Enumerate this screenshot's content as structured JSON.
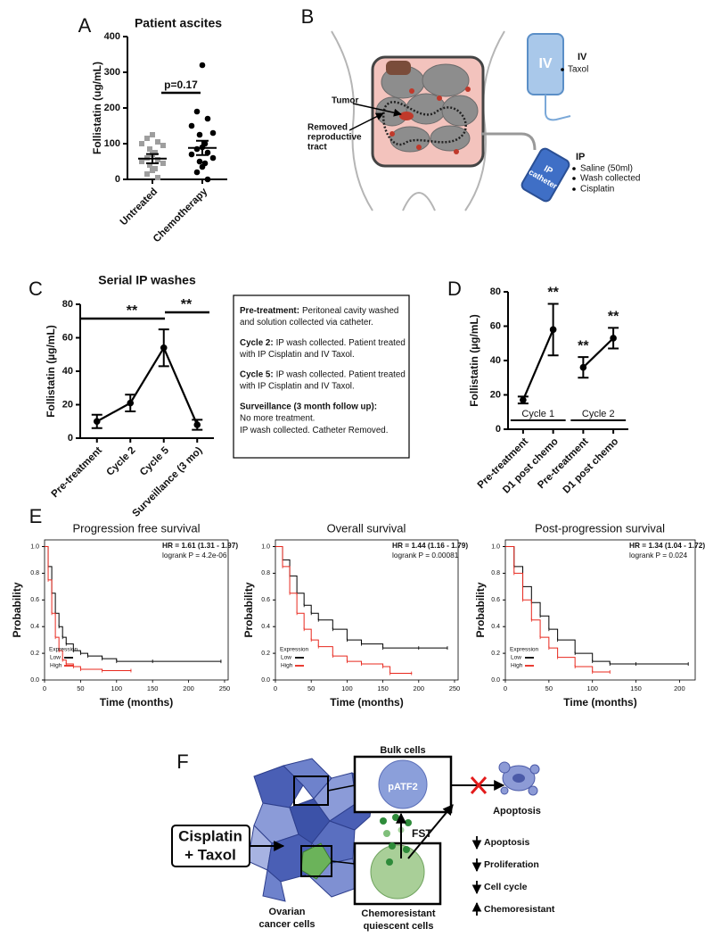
{
  "panel_labels": [
    "A",
    "B",
    "C",
    "D",
    "E",
    "F"
  ],
  "chart_data": [
    {
      "type": "strip",
      "title": "Patient ascites",
      "ylabel": "Follistatin (ug/mL)",
      "categories": [
        "Untreated",
        "Chemotherapy"
      ],
      "values": [
        [
          125,
          115,
          105,
          100,
          95,
          85,
          75,
          70,
          60,
          55,
          50,
          45,
          40,
          30,
          25,
          15,
          5
        ],
        [
          320,
          190,
          170,
          150,
          130,
          125,
          100,
          90,
          85,
          75,
          70,
          60,
          50,
          45,
          35,
          20,
          0
        ]
      ],
      "means": [
        58,
        88
      ],
      "errors": [
        13,
        20
      ],
      "colors": [
        "#9e9e9e",
        "#000000"
      ],
      "markers": [
        "square",
        "circle"
      ],
      "ylim": [
        0,
        400
      ],
      "yticks": [
        0,
        100,
        200,
        300,
        400
      ],
      "annotation": "p=0.17"
    },
    {
      "type": "line",
      "title": "Serial IP washes",
      "ylabel": "Follistatin (µg/mL)",
      "categories": [
        "Pre-treatment",
        "Cycle 2",
        "Cycle 5",
        "Surveillance (3 mo)"
      ],
      "values": [
        10,
        21,
        54,
        8
      ],
      "errors": [
        4,
        5,
        11,
        3
      ],
      "color": "#000000",
      "ylim": [
        0,
        80
      ],
      "yticks": [
        0,
        20,
        40,
        60,
        80
      ],
      "annotations": [
        "**",
        "**"
      ]
    },
    {
      "type": "line",
      "ylabel": "Follistatin (µg/mL)",
      "categories": [
        "Pre-treatment",
        "D1 post chemo",
        "Pre-treatment",
        "D1 post chemo"
      ],
      "series": [
        {
          "name": "Cycle 1",
          "color": "#000000",
          "values": [
            17,
            58,
            null,
            null
          ],
          "errors": [
            2,
            15,
            null,
            null
          ]
        },
        {
          "name": "Cycle 2",
          "color": "#000000",
          "values": [
            null,
            null,
            36,
            53
          ],
          "errors": [
            null,
            null,
            6,
            6
          ]
        }
      ],
      "ylim": [
        0,
        80
      ],
      "yticks": [
        0,
        20,
        40,
        60,
        80
      ],
      "annotations": [
        "**",
        "**",
        "**"
      ]
    },
    {
      "type": "survival",
      "title": "Progression free survival",
      "hr_text": "HR = 1.61 (1.31 - 1.97)",
      "logrank_text": "logrank P = 4.2e-06",
      "xlabel": "Time (months)",
      "ylabel": "Probability",
      "legend_title": "Expression",
      "series": [
        {
          "name": "Low",
          "color": "#000000",
          "x": [
            0,
            5,
            10,
            15,
            20,
            25,
            30,
            40,
            50,
            60,
            80,
            100,
            150,
            245
          ],
          "values": [
            1,
            0.85,
            0.65,
            0.5,
            0.4,
            0.32,
            0.27,
            0.22,
            0.2,
            0.18,
            0.16,
            0.14,
            0.14,
            0.14
          ]
        },
        {
          "name": "High",
          "color": "#e8281e",
          "x": [
            0,
            5,
            10,
            15,
            20,
            25,
            30,
            40,
            50,
            80,
            120
          ],
          "values": [
            1,
            0.75,
            0.5,
            0.32,
            0.22,
            0.15,
            0.12,
            0.1,
            0.08,
            0.07,
            0.07
          ]
        }
      ],
      "xlim": [
        0,
        255
      ],
      "xticks": [
        0,
        50,
        100,
        150,
        200,
        250
      ],
      "ylim": [
        0,
        1.05
      ],
      "yticks": [
        {
          "value": 0,
          "label": "0.0"
        },
        0.2,
        0.4,
        0.6,
        0.8,
        {
          "value": 1,
          "label": "1.0"
        }
      ]
    },
    {
      "type": "survival",
      "title": "Overall survival",
      "hr_text": "HR = 1.44 (1.16 - 1.79)",
      "logrank_text": "logrank P = 0.00081",
      "xlabel": "Time (months)",
      "ylabel": "Probability",
      "legend_title": "Expression",
      "series": [
        {
          "name": "Low",
          "color": "#000000",
          "x": [
            0,
            10,
            20,
            30,
            40,
            50,
            60,
            80,
            100,
            120,
            150,
            200,
            240
          ],
          "values": [
            1,
            0.9,
            0.78,
            0.65,
            0.56,
            0.5,
            0.45,
            0.38,
            0.3,
            0.27,
            0.24,
            0.24,
            0.24
          ]
        },
        {
          "name": "High",
          "color": "#e8281e",
          "x": [
            0,
            10,
            20,
            30,
            40,
            50,
            60,
            80,
            100,
            120,
            150,
            160,
            190
          ],
          "values": [
            1,
            0.85,
            0.65,
            0.5,
            0.38,
            0.3,
            0.25,
            0.18,
            0.14,
            0.12,
            0.1,
            0.05,
            0.05
          ]
        }
      ],
      "xlim": [
        0,
        255
      ],
      "xticks": [
        0,
        50,
        100,
        150,
        200,
        250
      ],
      "ylim": [
        0,
        1.05
      ],
      "yticks": [
        {
          "value": 0,
          "label": "0.0"
        },
        0.2,
        0.4,
        0.6,
        0.8,
        {
          "value": 1,
          "label": "1.0"
        }
      ]
    },
    {
      "type": "survival",
      "title": "Post-progression survival",
      "hr_text": "HR = 1.34 (1.04 - 1.72)",
      "logrank_text": "logrank P = 0.024",
      "xlabel": "Time (months)",
      "ylabel": "Probability",
      "legend_title": "Expression",
      "series": [
        {
          "name": "Low",
          "color": "#000000",
          "x": [
            0,
            10,
            20,
            30,
            40,
            50,
            60,
            80,
            100,
            120,
            150,
            210
          ],
          "values": [
            1,
            0.85,
            0.7,
            0.58,
            0.48,
            0.38,
            0.3,
            0.2,
            0.14,
            0.12,
            0.12,
            0.12
          ]
        },
        {
          "name": "High",
          "color": "#e8281e",
          "x": [
            0,
            10,
            20,
            30,
            40,
            50,
            60,
            80,
            100,
            120
          ],
          "values": [
            1,
            0.8,
            0.6,
            0.45,
            0.32,
            0.24,
            0.17,
            0.1,
            0.06,
            0.06
          ]
        }
      ],
      "xlim": [
        0,
        218
      ],
      "xticks": [
        0,
        50,
        100,
        150,
        200
      ],
      "ylim": [
        0,
        1.05
      ],
      "yticks": [
        {
          "value": 0,
          "label": "0.0"
        },
        0.2,
        0.4,
        0.6,
        0.8,
        {
          "value": 1,
          "label": "1.0"
        }
      ]
    }
  ],
  "panel_c_notes": [
    {
      "heading": "Pre-treatment:",
      "inline": true,
      "lines": [
        "Peritoneal cavity washed",
        "and solution collected via catheter."
      ]
    },
    {
      "heading": "Cycle 2:",
      "inline": true,
      "lines": [
        "IP wash collected. Patient treated",
        "with IP Cisplatin and IV Taxol."
      ]
    },
    {
      "heading": "Cycle 5:",
      "inline": true,
      "lines": [
        "IP wash collected. Patient treated",
        "with IP Cisplatin and IV Taxol."
      ]
    },
    {
      "heading": "Surveillance (3 month follow up):",
      "inline": false,
      "lines": [
        "No more treatment.",
        "IP wash collected. Catheter Removed."
      ]
    }
  ],
  "diagram_b": {
    "tumor": "Tumor",
    "removed": [
      "Removed",
      "reproductive",
      "tract"
    ],
    "iv_bag": "IV",
    "iv": "IV",
    "iv_items": [
      "Taxol"
    ],
    "ip": "IP",
    "ip_catheter": [
      "IP",
      "catheter"
    ],
    "ip_items": [
      "Saline (50ml)",
      "Wash collected",
      "Cisplatin"
    ]
  },
  "diagram_f": {
    "bulk": "Bulk  cells",
    "patf2": "pATF2",
    "apoptosis": "Apoptosis",
    "fst": "FST",
    "drug": [
      "Cisplatin",
      "+ Taxol"
    ],
    "ovarian": [
      "Ovarian",
      "cancer cells"
    ],
    "quiescent": [
      "Chemoresistant",
      "quiescent cells"
    ],
    "effects": [
      {
        "direction": "down",
        "label": "Apoptosis"
      },
      {
        "direction": "down",
        "label": "Proliferation"
      },
      {
        "direction": "down",
        "label": "Cell cycle"
      },
      {
        "direction": "up",
        "label": "Chemoresistant"
      }
    ]
  }
}
